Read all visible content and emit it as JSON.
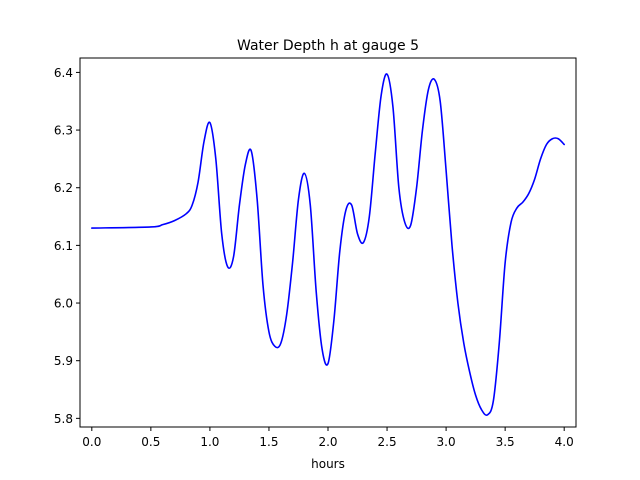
{
  "chart_data": {
    "type": "line",
    "title": "Water Depth h at gauge 5",
    "xlabel": "hours",
    "ylabel": "",
    "xlim": [
      -0.1,
      4.1
    ],
    "ylim": [
      5.785,
      6.425
    ],
    "xticks": [
      0.0,
      0.5,
      1.0,
      1.5,
      2.0,
      2.5,
      3.0,
      3.5,
      4.0
    ],
    "xtick_labels": [
      "0.0",
      "0.5",
      "1.0",
      "1.5",
      "2.0",
      "2.5",
      "3.0",
      "3.5",
      "4.0"
    ],
    "yticks": [
      5.8,
      5.9,
      6.0,
      6.1,
      6.2,
      6.3,
      6.4
    ],
    "ytick_labels": [
      "5.8",
      "5.9",
      "6.0",
      "6.1",
      "6.2",
      "6.3",
      "6.4"
    ],
    "grid": false,
    "series": [
      {
        "color": "#0000ff",
        "x": [
          0.0,
          0.5,
          0.6,
          0.7,
          0.8,
          0.85,
          0.9,
          0.95,
          1.0,
          1.05,
          1.1,
          1.15,
          1.2,
          1.25,
          1.3,
          1.35,
          1.4,
          1.45,
          1.5,
          1.55,
          1.6,
          1.65,
          1.7,
          1.75,
          1.8,
          1.85,
          1.9,
          1.95,
          2.0,
          2.05,
          2.1,
          2.15,
          2.2,
          2.25,
          2.3,
          2.35,
          2.4,
          2.45,
          2.5,
          2.55,
          2.6,
          2.65,
          2.7,
          2.75,
          2.8,
          2.85,
          2.9,
          2.95,
          3.0,
          3.05,
          3.1,
          3.15,
          3.2,
          3.25,
          3.3,
          3.35,
          3.4,
          3.45,
          3.5,
          3.55,
          3.6,
          3.65,
          3.7,
          3.75,
          3.8,
          3.85,
          3.9,
          3.95,
          4.0
        ],
        "y": [
          6.13,
          6.132,
          6.136,
          6.143,
          6.155,
          6.17,
          6.21,
          6.28,
          6.313,
          6.25,
          6.12,
          6.063,
          6.08,
          6.17,
          6.24,
          6.264,
          6.18,
          6.03,
          5.95,
          5.925,
          5.93,
          5.98,
          6.07,
          6.18,
          6.225,
          6.17,
          6.02,
          5.92,
          5.895,
          5.97,
          6.09,
          6.16,
          6.17,
          6.12,
          6.105,
          6.15,
          6.26,
          6.36,
          6.397,
          6.34,
          6.2,
          6.14,
          6.135,
          6.2,
          6.3,
          6.37,
          6.388,
          6.35,
          6.23,
          6.1,
          6.0,
          5.93,
          5.88,
          5.84,
          5.815,
          5.806,
          5.83,
          5.93,
          6.07,
          6.14,
          6.165,
          6.175,
          6.19,
          6.215,
          6.25,
          6.275,
          6.285,
          6.285,
          6.275
        ]
      }
    ]
  }
}
